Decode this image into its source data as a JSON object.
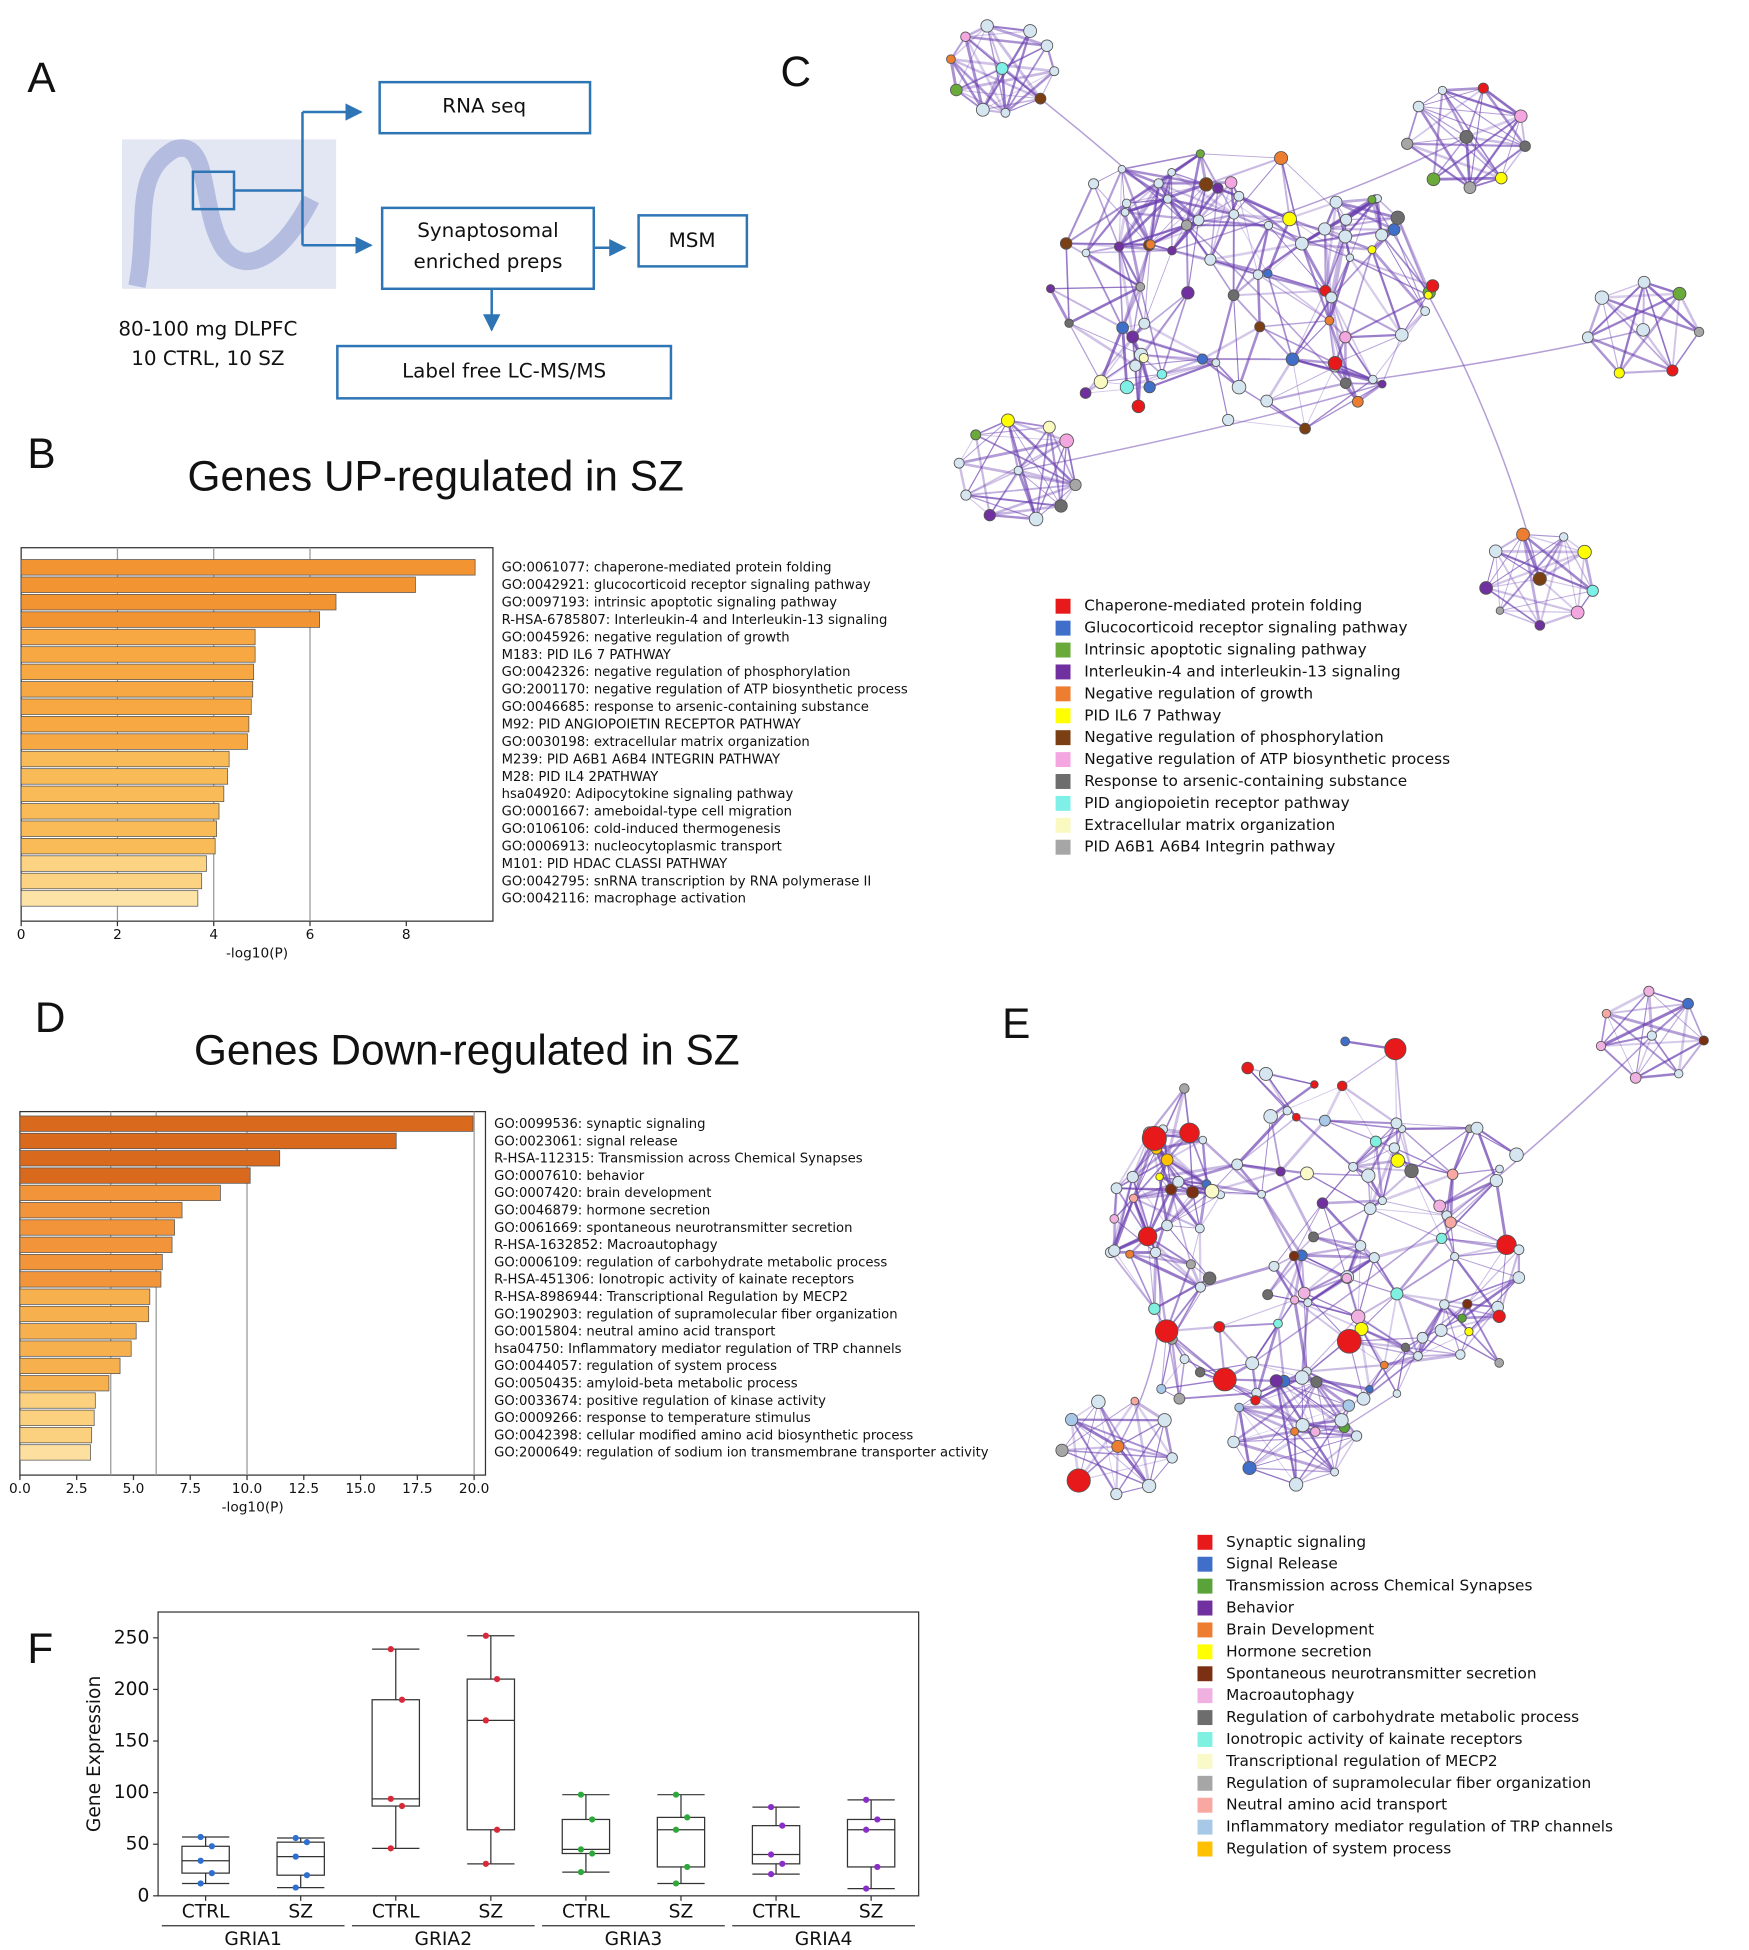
{
  "panel_labels": [
    "A",
    "B",
    "C",
    "D",
    "E",
    "F"
  ],
  "diagram": {
    "sample": [
      "80-100 mg DLPFC",
      "10 CTRL, 10 SZ"
    ],
    "boxes": [
      {
        "lines": [
          "RNA seq"
        ]
      },
      {
        "lines": [
          "Synaptosomal",
          "enriched preps"
        ]
      },
      {
        "lines": [
          "MSM"
        ]
      },
      {
        "lines": [
          "Label free LC-MS/MS"
        ]
      }
    ]
  },
  "network_c": {
    "legend": [
      {
        "label": "Chaperone-mediated protein folding",
        "color": "#e8191b"
      },
      {
        "label": "Glucocorticoid receptor signaling pathway",
        "color": "#3f6fc9"
      },
      {
        "label": "Intrinsic apoptotic signaling pathway",
        "color": "#6aaa3a"
      },
      {
        "label": "Interleukin-4 and interleukin-13 signaling",
        "color": "#7030a0"
      },
      {
        "label": "Negative regulation of growth",
        "color": "#ed7d31"
      },
      {
        "label": "PID IL6 7 Pathway",
        "color": "#ffff00"
      },
      {
        "label": "Negative regulation of phosphorylation",
        "color": "#7b3f14"
      },
      {
        "label": "Negative regulation of ATP biosynthetic process",
        "color": "#f4a6e0"
      },
      {
        "label": "Response to arsenic-containing substance",
        "color": "#6d6d6d"
      },
      {
        "label": "PID angiopoietin receptor pathway",
        "color": "#7ff0e8"
      },
      {
        "label": "Extracellular matrix organization",
        "color": "#fafac0"
      },
      {
        "label": "PID A6B1 A6B4 Integrin pathway",
        "color": "#a6a6a6"
      }
    ]
  },
  "network_e": {
    "legend": [
      {
        "label": "Synaptic signaling",
        "color": "#e8191b"
      },
      {
        "label": "Signal Release",
        "color": "#3f6fc9"
      },
      {
        "label": "Transmission across Chemical Synapses",
        "color": "#5aa33a"
      },
      {
        "label": "Behavior",
        "color": "#7030a0"
      },
      {
        "label": "Brain Development",
        "color": "#ed7d31"
      },
      {
        "label": "Hormone secretion",
        "color": "#ffff00"
      },
      {
        "label": "Spontaneous neurotransmitter secretion",
        "color": "#7b3014"
      },
      {
        "label": "Macroautophagy",
        "color": "#f0b0e0"
      },
      {
        "label": "Regulation of carbohydrate metabolic process",
        "color": "#6d6d6d"
      },
      {
        "label": "Ionotropic activity of kainate receptors",
        "color": "#80f0e0"
      },
      {
        "label": "Transcriptional regulation of MECP2",
        "color": "#fafac8"
      },
      {
        "label": "Regulation of supramolecular fiber organization",
        "color": "#a6a6a6"
      },
      {
        "label": "Neutral amino acid transport",
        "color": "#f8a8a0"
      },
      {
        "label": "Inflammatory mediator regulation of TRP channels",
        "color": "#a8c8e8"
      },
      {
        "label": "Regulation of system process",
        "color": "#ffc000"
      }
    ]
  },
  "chart_data": [
    {
      "type": "barh",
      "title": "Genes UP-regulated in SZ",
      "xlabel": "-log10(P)",
      "categories": [
        "GO:0061077: chaperone-mediated protein folding",
        "GO:0042921: glucocorticoid receptor signaling pathway",
        "GO:0097193: intrinsic apoptotic signaling pathway",
        "R-HSA-6785807: Interleukin-4 and Interleukin-13 signaling",
        "GO:0045926: negative regulation of growth",
        "M183: PID IL6 7 PATHWAY",
        "GO:0042326: negative regulation of phosphorylation",
        "GO:2001170: negative regulation of ATP biosynthetic process",
        "GO:0046685: response to arsenic-containing substance",
        "M92: PID ANGIOPOIETIN RECEPTOR PATHWAY",
        "GO:0030198: extracellular matrix organization",
        "M239: PID A6B1 A6B4 INTEGRIN PATHWAY",
        "M28: PID IL4 2PATHWAY",
        "hsa04920: Adipocytokine signaling pathway",
        "GO:0001667: ameboidal-type cell migration",
        "GO:0106106: cold-induced thermogenesis",
        "GO:0006913: nucleocytoplasmic transport",
        "M101: PID HDAC CLASSI PATHWAY",
        "GO:0042795: snRNA transcription by RNA polymerase II",
        "GO:0042116: macrophage activation"
      ],
      "values": [
        9.43,
        8.19,
        6.54,
        6.2,
        4.86,
        4.86,
        4.83,
        4.81,
        4.78,
        4.73,
        4.7,
        4.32,
        4.29,
        4.21,
        4.11,
        4.06,
        4.03,
        3.85,
        3.75,
        3.67
      ],
      "colors": [
        "#f39432",
        "#f39432",
        "#f39432",
        "#f39432",
        "#f7a843",
        "#f7a843",
        "#f7a843",
        "#f7a843",
        "#f7a843",
        "#f7a843",
        "#f7a843",
        "#f9bb58",
        "#f9bb58",
        "#f9bb58",
        "#f9bb58",
        "#f9bb58",
        "#f9bb58",
        "#fcd383",
        "#fcd383",
        "#fde3a6"
      ],
      "xlim": [
        0,
        9.8
      ],
      "xticks": [
        0,
        2,
        4,
        6,
        8
      ],
      "grid_lines": [
        2,
        4,
        6
      ]
    },
    {
      "type": "barh",
      "title": "Genes Down-regulated in SZ",
      "xlabel": "-log10(P)",
      "categories": [
        "GO:0099536: synaptic signaling",
        "GO:0023061: signal release",
        "R-HSA-112315: Transmission across Chemical Synapses",
        "GO:0007610: behavior",
        "GO:0007420: brain development",
        "GO:0046879: hormone secretion",
        "GO:0061669: spontaneous neurotransmitter secretion",
        "R-HSA-1632852: Macroautophagy",
        "GO:0006109: regulation of carbohydrate metabolic process",
        "R-HSA-451306: Ionotropic activity of kainate receptors",
        "R-HSA-8986944: Transcriptional Regulation by MECP2",
        "GO:1902903: regulation of supramolecular fiber organization",
        "GO:0015804: neutral amino acid transport",
        "hsa04750: Inflammatory mediator regulation of TRP channels",
        "GO:0044057: regulation of system process",
        "GO:0050435: amyloid-beta metabolic process",
        "GO:0033674: positive regulation of kinase activity",
        "GO:0009266: response to temperature stimulus",
        "GO:0042398: cellular modified amino acid biosynthetic process",
        "GO:2000649: regulation of sodium ion transmembrane transporter activity"
      ],
      "values": [
        19.95,
        16.57,
        11.44,
        10.14,
        8.83,
        7.14,
        6.81,
        6.7,
        6.27,
        6.21,
        5.72,
        5.67,
        5.12,
        4.9,
        4.41,
        3.92,
        3.32,
        3.27,
        3.16,
        3.11
      ],
      "colors": [
        "#d9691c",
        "#d9691c",
        "#d9691c",
        "#d9691c",
        "#f2953a",
        "#f2953a",
        "#f2953a",
        "#f2953a",
        "#f2953a",
        "#f2953a",
        "#f7b04e",
        "#f7b04e",
        "#f7b04e",
        "#f7b04e",
        "#f7b04e",
        "#f7b04e",
        "#fbd07e",
        "#fbd07e",
        "#fbd07e",
        "#fde0a0"
      ],
      "xlim": [
        0,
        20.5
      ],
      "xticks": [
        {
          "value": 0,
          "label": "0.0"
        },
        2.5,
        {
          "value": 5,
          "label": "5.0"
        },
        7.5,
        {
          "value": 10,
          "label": "10.0"
        },
        12.5,
        {
          "value": 15,
          "label": "15.0"
        },
        17.5,
        {
          "value": 20,
          "label": "20.0"
        }
      ],
      "grid_lines": [
        4,
        6,
        10,
        20
      ]
    },
    {
      "type": "box",
      "ylabel": "Gene Expression",
      "categories": [
        "CTRL",
        "SZ",
        "CTRL",
        "SZ",
        "CTRL",
        "SZ",
        "CTRL",
        "SZ"
      ],
      "groups": [
        {
          "name": "GRIA1",
          "color": "#2f6fd0"
        },
        {
          "name": "GRIA2",
          "color": "#d8283a"
        },
        {
          "name": "GRIA3",
          "color": "#2ea83a"
        },
        {
          "name": "GRIA4",
          "color": "#8a2ec8"
        }
      ],
      "boxes": [
        {
          "whislo": 12,
          "q1": 22,
          "med": 34,
          "q3": 48,
          "whishi": 57
        },
        {
          "whislo": 8,
          "q1": 20,
          "med": 38,
          "q3": 52,
          "whishi": 56
        },
        {
          "whislo": 46,
          "q1": 87,
          "med": 94,
          "q3": 190,
          "whishi": 239
        },
        {
          "whislo": 31,
          "q1": 64,
          "med": 170,
          "q3": 210,
          "whishi": 252
        },
        {
          "whislo": 23,
          "q1": 41,
          "med": 45,
          "q3": 74,
          "whishi": 98
        },
        {
          "whislo": 12,
          "q1": 28,
          "med": 64,
          "q3": 76,
          "whishi": 98
        },
        {
          "whislo": 21,
          "q1": 31,
          "med": 40,
          "q3": 68,
          "whishi": 86
        },
        {
          "whislo": 7,
          "q1": 28,
          "med": 64,
          "q3": 74,
          "whishi": 93
        }
      ],
      "ylim": [
        0,
        275
      ],
      "yticks": [
        0,
        50,
        100,
        150,
        200,
        250
      ]
    }
  ]
}
